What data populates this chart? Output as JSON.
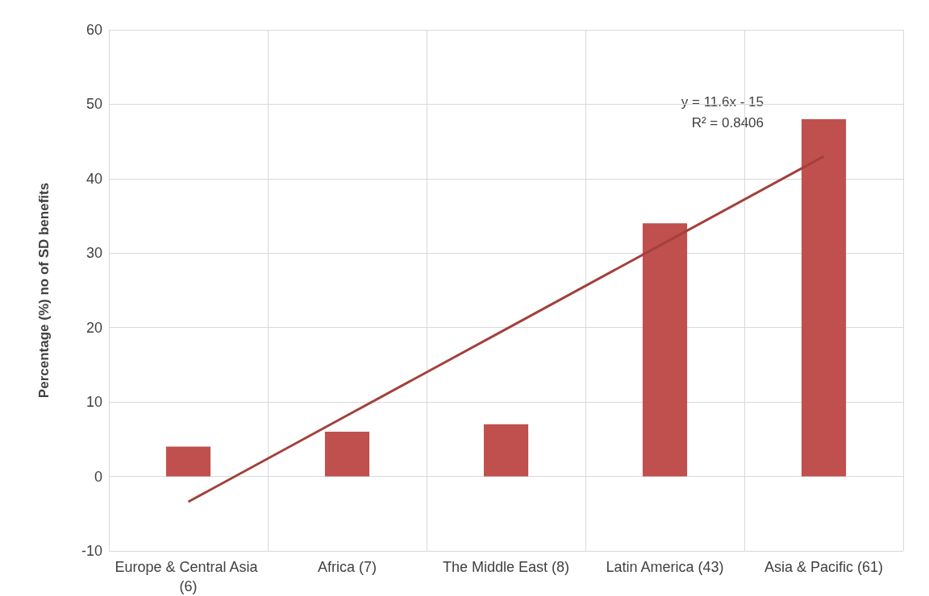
{
  "chart_data": {
    "type": "bar",
    "ylabel": "Percentage (%) no of SD benefits",
    "categories": [
      "Europe & Central Asia (6)",
      "Africa (7)",
      "The Middle East (8)",
      "Latin America (43)",
      "Asia & Pacific (61)"
    ],
    "series": [
      {
        "color": "#c0504d",
        "values": [
          4,
          6,
          7,
          34,
          48
        ]
      },
      {
        "type": "line",
        "color": "#a3403c",
        "marker": "none",
        "line_style": "solid",
        "values": [
          -3.4,
          8.2,
          19.8,
          31.4,
          43
        ]
      }
    ],
    "ylim": [
      -10,
      60
    ],
    "yticks": [
      -10,
      0,
      10,
      20,
      30,
      40,
      50,
      60
    ],
    "grid": true,
    "annotations": [
      "y = 11.6x - 15",
      "R² = 0.8406"
    ]
  }
}
